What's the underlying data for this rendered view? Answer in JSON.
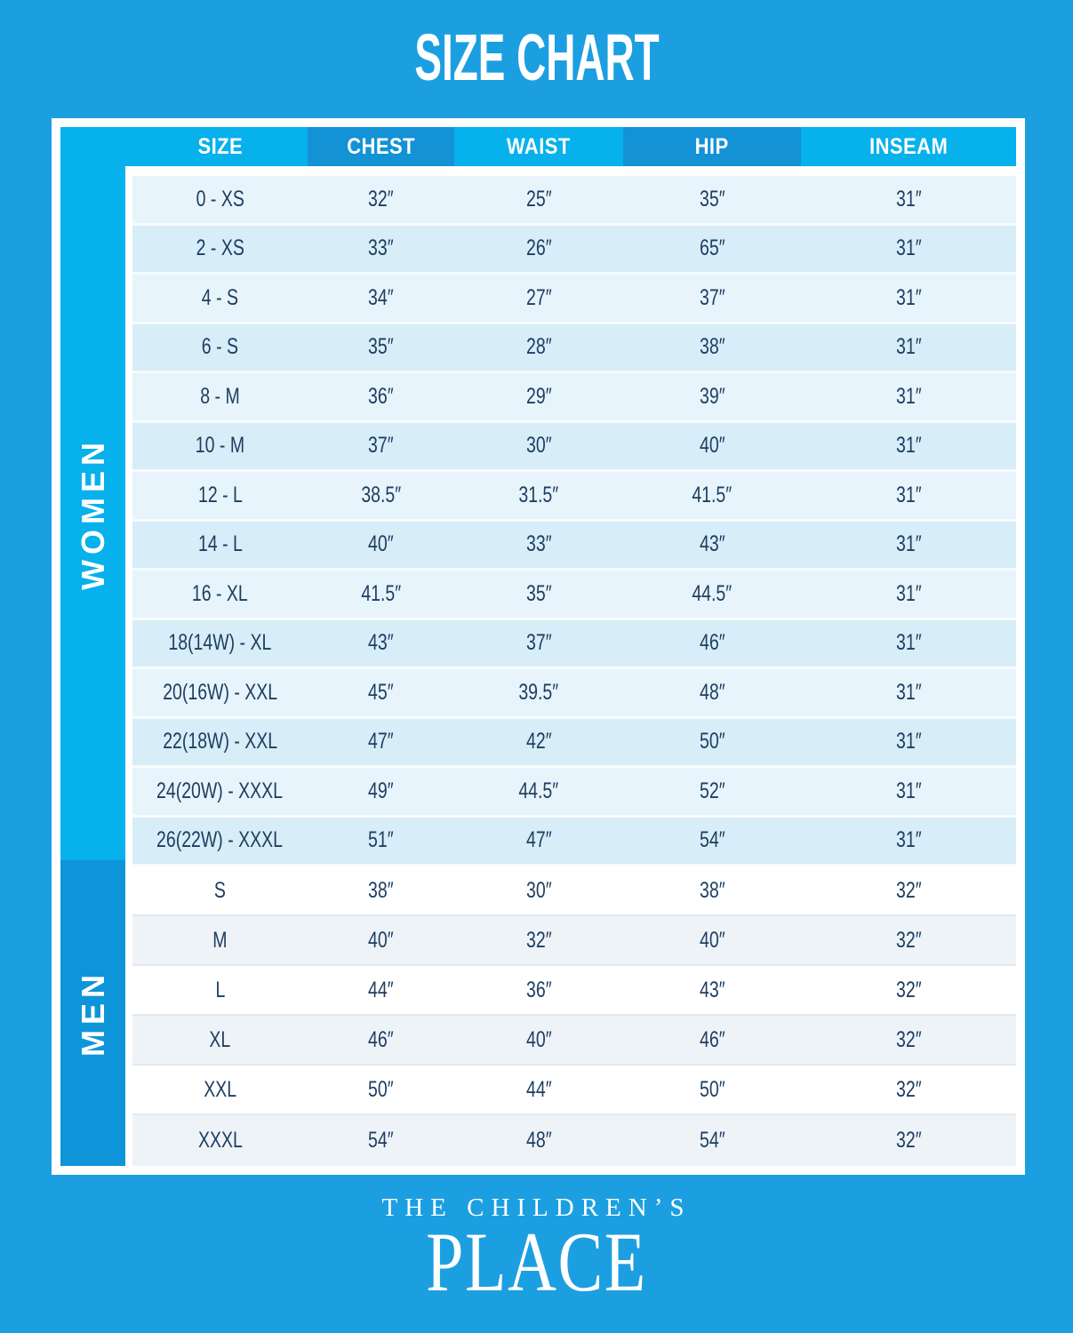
{
  "page": {
    "title": "SIZE CHART"
  },
  "chart_data": {
    "type": "table",
    "title": "SIZE CHART",
    "columns": [
      "SIZE",
      "CHEST",
      "WAIST",
      "HIP",
      "INSEAM"
    ],
    "sections": [
      {
        "label": "WOMEN",
        "rows": [
          [
            "0 - XS",
            "32″",
            "25″",
            "35″",
            "31″"
          ],
          [
            "2 - XS",
            "33″",
            "26″",
            "65″",
            "31″"
          ],
          [
            "4 - S",
            "34″",
            "27″",
            "37″",
            "31″"
          ],
          [
            "6 - S",
            "35″",
            "28″",
            "38″",
            "31″"
          ],
          [
            "8 - M",
            "36″",
            "29″",
            "39″",
            "31″"
          ],
          [
            "10 - M",
            "37″",
            "30″",
            "40″",
            "31″"
          ],
          [
            "12 - L",
            "38.5″",
            "31.5″",
            "41.5″",
            "31″"
          ],
          [
            "14 - L",
            "40″",
            "33″",
            "43″",
            "31″"
          ],
          [
            "16 - XL",
            "41.5″",
            "35″",
            "44.5″",
            "31″"
          ],
          [
            "18(14W) - XL",
            "43″",
            "37″",
            "46″",
            "31″"
          ],
          [
            "20(16W) - XXL",
            "45″",
            "39.5″",
            "48″",
            "31″"
          ],
          [
            "22(18W) - XXL",
            "47″",
            "42″",
            "50″",
            "31″"
          ],
          [
            "24(20W) - XXXL",
            "49″",
            "44.5″",
            "52″",
            "31″"
          ],
          [
            "26(22W) - XXXL",
            "51″",
            "47″",
            "54″",
            "31″"
          ]
        ]
      },
      {
        "label": "MEN",
        "rows": [
          [
            "S",
            "38″",
            "30″",
            "38″",
            "32″"
          ],
          [
            "M",
            "40″",
            "32″",
            "40″",
            "32″"
          ],
          [
            "L",
            "44″",
            "36″",
            "43″",
            "32″"
          ],
          [
            "XL",
            "46″",
            "40″",
            "46″",
            "32″"
          ],
          [
            "XXL",
            "50″",
            "44″",
            "50″",
            "32″"
          ],
          [
            "XXXL",
            "54″",
            "48″",
            "54″",
            "32″"
          ]
        ]
      }
    ],
    "layout": {
      "legend": "none",
      "grid": "row-stripes"
    }
  },
  "logo": {
    "line1": "THE CHILDREN’S",
    "line2": "PLACE"
  },
  "colors": {
    "background": "#1C9FE0",
    "header_light": "#06B1EC",
    "header_dark": "#1392D6",
    "strip_women": "#06B1EC",
    "strip_men": "#0E95D9",
    "row_women_light": "#E7F4FB",
    "row_women_dark": "#D7EDF8",
    "row_men_light": "#FFFFFF",
    "row_men_dark": "#EEF3F8",
    "cell_text": "#1E3E61"
  }
}
